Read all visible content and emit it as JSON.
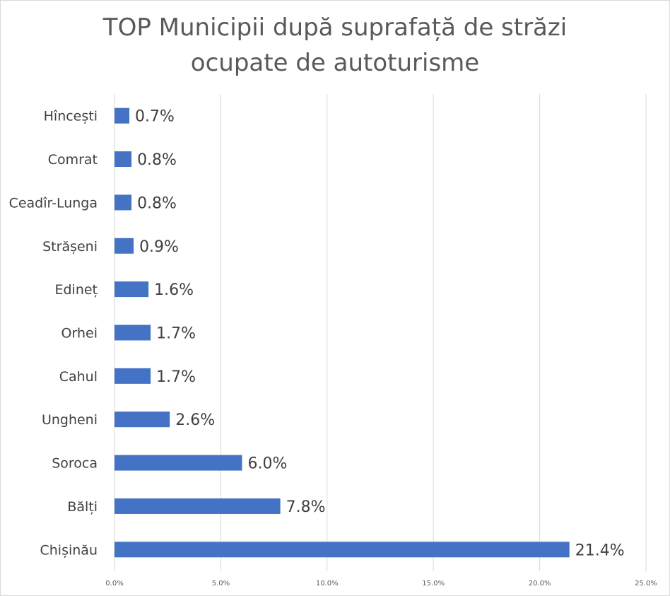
{
  "chart_data": {
    "type": "bar",
    "orientation": "horizontal",
    "title_line1": "TOP Municipii după suprafață de străzi",
    "title_line2": "ocupate de autoturisme",
    "categories": [
      "Hîncești",
      "Comrat",
      "Ceadîr-Lunga",
      "Strășeni",
      "Edineț",
      "Orhei",
      "Cahul",
      "Ungheni",
      "Soroca",
      "Bălți",
      "Chișinău"
    ],
    "values": [
      0.7,
      0.8,
      0.8,
      0.9,
      1.6,
      1.7,
      1.7,
      2.6,
      6.0,
      7.8,
      21.4
    ],
    "value_labels": [
      "0.7%",
      "0.8%",
      "0.8%",
      "0.9%",
      "1.6%",
      "1.7%",
      "1.7%",
      "2.6%",
      "6.0%",
      "7.8%",
      "21.4%"
    ],
    "xlim": [
      0,
      25
    ],
    "x_ticks": [
      0,
      5,
      10,
      15,
      20,
      25
    ],
    "x_tick_labels": [
      "0.0%",
      "5.0%",
      "10.0%",
      "15.0%",
      "20.0%",
      "25.0%"
    ],
    "grid": true,
    "bar_color": "#4472c4",
    "grid_color": "#d9d9d9"
  }
}
